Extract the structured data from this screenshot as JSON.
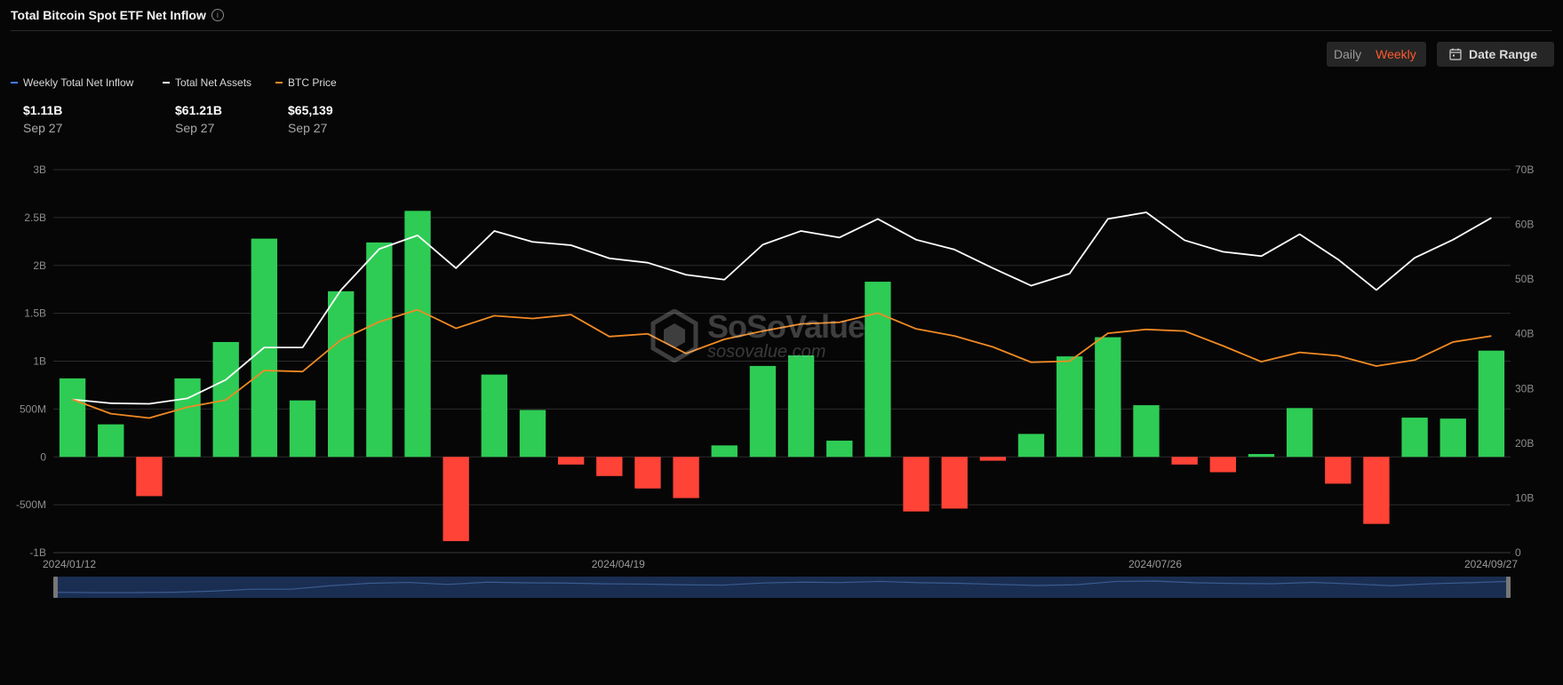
{
  "title": "Total Bitcoin Spot ETF Net Inflow",
  "info_icon": "info-icon",
  "period_toggle": {
    "options": [
      "Daily",
      "Weekly"
    ],
    "selected": "Weekly"
  },
  "date_range_label": "Date Range",
  "date_range_icon": "calendar-icon",
  "legend": [
    {
      "name": "Weekly Total Net Inflow",
      "value": "$1.11B",
      "date": "Sep 27",
      "color": "#3d7dff"
    },
    {
      "name": "Total Net Assets",
      "value": "$61.21B",
      "date": "Sep 27",
      "color": "#ffffff"
    },
    {
      "name": "BTC Price",
      "value": "$65,139",
      "date": "Sep 27",
      "color": "#f08a24"
    }
  ],
  "watermark": {
    "brand": "SoSoValue",
    "url": "sosovalue.com"
  },
  "colors": {
    "positive": "#2ecc55",
    "negative": "#ff4336",
    "assets_line": "#ffffff",
    "price_line": "#f08a24",
    "navigator": "#1a2e52"
  },
  "chart_data": {
    "type": "bar",
    "x_tick_labels": [
      "2024/01/12",
      "2024/04/19",
      "2024/07/26",
      "2024/09/27"
    ],
    "left_axis": {
      "ticks": [
        "3B",
        "2.5B",
        "2B",
        "1.5B",
        "1B",
        "500M",
        "0",
        "-500M",
        "-1B"
      ],
      "range": [
        -1,
        3
      ],
      "unit": "B USD"
    },
    "right_axis": {
      "ticks": [
        "70B",
        "60B",
        "50B",
        "40B",
        "30B",
        "20B",
        "10B",
        "0"
      ],
      "range": [
        0,
        70
      ],
      "unit": "B USD"
    },
    "grid": true,
    "series": [
      {
        "name": "Weekly Total Net Inflow",
        "type": "bar",
        "axis": "left",
        "values": [
          0.82,
          0.34,
          -0.41,
          0.82,
          1.2,
          2.28,
          0.59,
          1.73,
          2.24,
          2.57,
          -0.88,
          0.86,
          0.49,
          -0.08,
          -0.2,
          -0.33,
          -0.43,
          0.12,
          0.95,
          1.06,
          0.17,
          1.83,
          -0.57,
          -0.54,
          -0.04,
          0.24,
          1.05,
          1.25,
          0.54,
          -0.08,
          -0.16,
          0.03,
          0.51,
          -0.28,
          -0.7,
          0.41,
          0.4,
          1.11
        ]
      },
      {
        "name": "Total Net Assets",
        "type": "line",
        "axis": "right",
        "values": [
          28.0,
          27.3,
          27.2,
          28.2,
          31.6,
          37.5,
          37.5,
          48.0,
          55.5,
          58.0,
          52.0,
          58.8,
          56.8,
          56.2,
          53.8,
          53.0,
          50.8,
          49.9,
          56.3,
          58.8,
          57.6,
          61.0,
          57.2,
          55.4,
          52.0,
          48.8,
          51.0,
          61.0,
          62.2,
          57.1,
          55.0,
          54.2,
          58.2,
          53.6,
          48.0,
          53.9,
          57.2,
          61.2
        ]
      },
      {
        "name": "BTC Price",
        "type": "line",
        "axis": "right",
        "values": [
          28.0,
          25.4,
          24.6,
          26.6,
          27.9,
          33.3,
          33.1,
          38.9,
          42.2,
          44.4,
          41.0,
          43.3,
          42.8,
          43.5,
          39.5,
          40.0,
          36.4,
          39.0,
          40.5,
          41.8,
          42.1,
          43.8,
          40.9,
          39.6,
          37.6,
          34.8,
          35.0,
          40.1,
          40.8,
          40.5,
          37.8,
          34.9,
          36.6,
          36.0,
          34.1,
          35.2,
          38.5,
          39.6
        ]
      }
    ]
  }
}
